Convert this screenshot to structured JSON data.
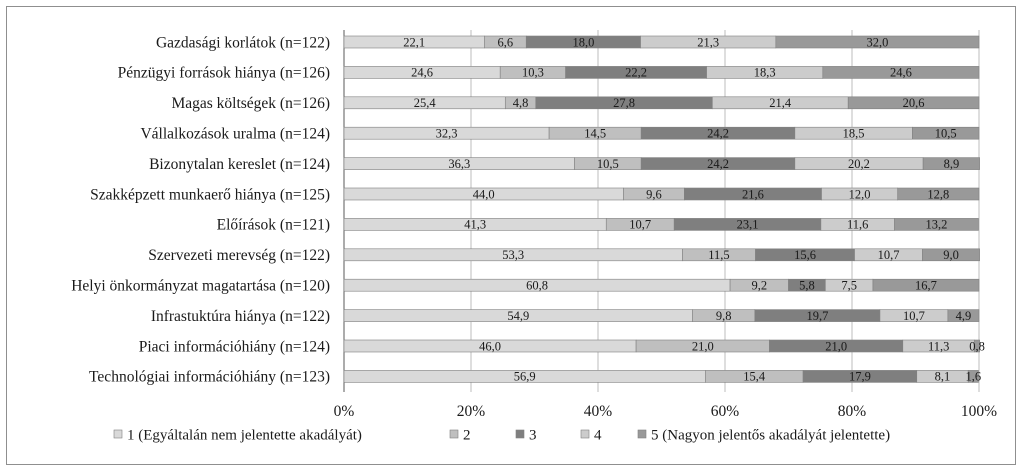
{
  "chart_data": {
    "type": "bar",
    "orientation": "horizontal",
    "stacked": true,
    "percent_axis": true,
    "categories": [
      "Gazdasági korlátok (n=122)",
      "Pénzügyi források hiánya (n=126)",
      "Magas költségek (n=126)",
      "Vállalkozások uralma (n=124)",
      "Bizonytalan kereslet (n=124)",
      "Szakképzett munkaerő hiánya (n=125)",
      "Előírások (n=121)",
      "Szervezeti merevség (n=122)",
      "Helyi önkormányzat magatartása (n=120)",
      "Infrastuktúra hiánya (n=122)",
      "Piaci információhiány (n=124)",
      "Technológiai információhiány (n=123)"
    ],
    "series": [
      {
        "name": "1 (Egyáltalán nem jelentette akadályát)",
        "color": "#d9d9d9",
        "values": [
          22.1,
          24.6,
          25.4,
          32.3,
          36.3,
          44.0,
          41.3,
          53.3,
          60.8,
          54.9,
          46.0,
          56.9
        ],
        "labels": [
          "22,1",
          "24,6",
          "25,4",
          "32,3",
          "36,3",
          "44,0",
          "41,3",
          "53,3",
          "60,8",
          "54,9",
          "46,0",
          "56,9"
        ]
      },
      {
        "name": "2",
        "color": "#bfbfbf",
        "values": [
          6.6,
          10.3,
          4.8,
          14.5,
          10.5,
          9.6,
          10.7,
          11.5,
          9.2,
          9.8,
          21.0,
          15.4
        ],
        "labels": [
          "6,6",
          "10,3",
          "4,8",
          "14,5",
          "10,5",
          "9,6",
          "10,7",
          "11,5",
          "9,2",
          "9,8",
          "21,0",
          "15,4"
        ]
      },
      {
        "name": "3",
        "color": "#7f7f7f",
        "values": [
          18.0,
          22.2,
          27.8,
          24.2,
          24.2,
          21.6,
          23.1,
          15.6,
          5.8,
          19.7,
          21.0,
          17.9
        ],
        "labels": [
          "18,0",
          "22,2",
          "27,8",
          "24,2",
          "24,2",
          "21,6",
          "23,1",
          "15,6",
          "5,8",
          "19,7",
          "21,0",
          "17,9"
        ]
      },
      {
        "name": "4",
        "color": "#cccccc",
        "values": [
          21.3,
          18.3,
          21.4,
          18.5,
          20.2,
          12.0,
          11.6,
          10.7,
          7.5,
          10.7,
          11.3,
          8.1
        ],
        "labels": [
          "21,3",
          "18,3",
          "21,4",
          "18,5",
          "20,2",
          "12,0",
          "11,6",
          "10,7",
          "7,5",
          "10,7",
          "11,3",
          "8,1"
        ]
      },
      {
        "name": "5 (Nagyon jelentős akadályát jelentette)",
        "color": "#999999",
        "values": [
          32.0,
          24.6,
          20.6,
          10.5,
          8.9,
          12.8,
          13.2,
          9.0,
          16.7,
          4.9,
          0.8,
          1.6
        ],
        "labels": [
          "32,0",
          "24,6",
          "20,6",
          "10,5",
          "8,9",
          "12,8",
          "13,2",
          "9,0",
          "16,7",
          "4,9",
          "0,8",
          "1,6"
        ]
      }
    ],
    "x_ticks": [
      "0%",
      "20%",
      "40%",
      "60%",
      "80%",
      "100%"
    ],
    "xlim": [
      0,
      100
    ],
    "grid": true,
    "legend_position": "bottom"
  }
}
